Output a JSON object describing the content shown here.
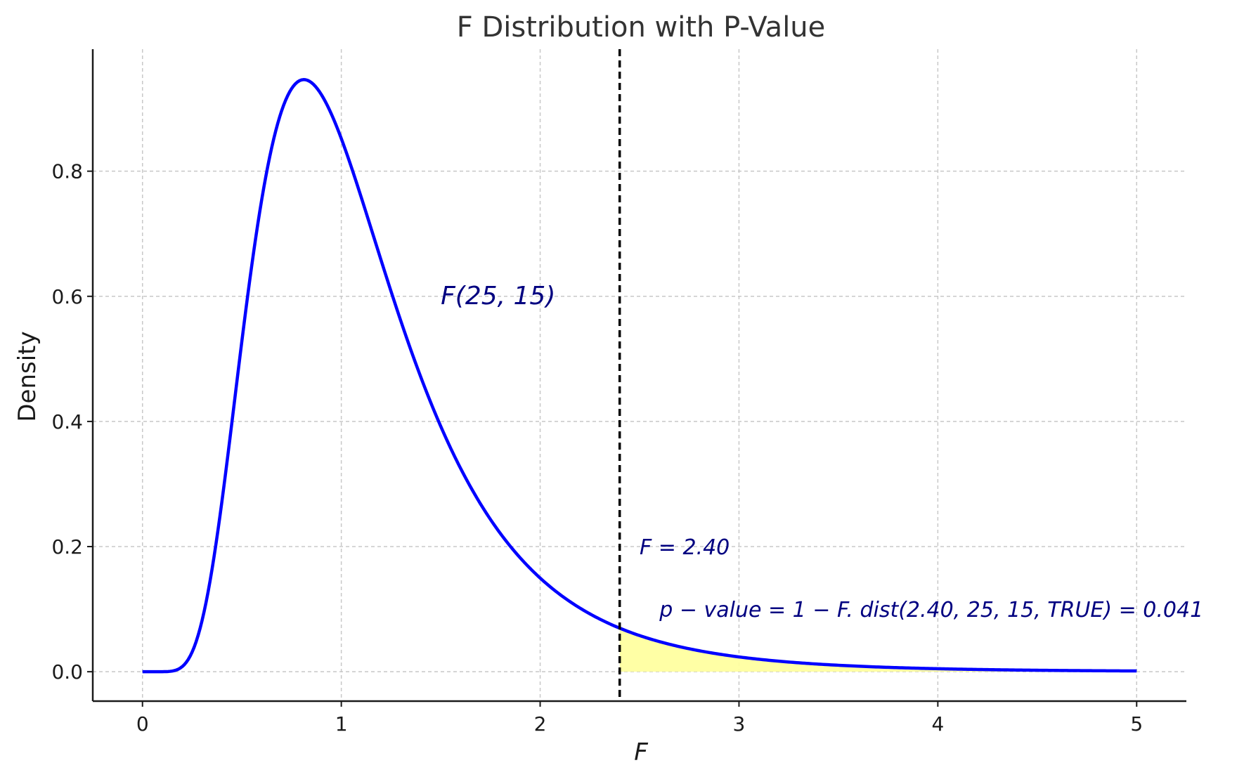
{
  "chart_data": {
    "type": "line",
    "title": "F Distribution with P-Value",
    "xlabel": "F",
    "ylabel": "Density",
    "xlim": [
      -0.25,
      5.25
    ],
    "ylim": [
      -0.047,
      0.995
    ],
    "x_ticks": [
      "0",
      "1",
      "2",
      "3",
      "4",
      "5"
    ],
    "y_ticks": [
      "0.0",
      "0.2",
      "0.4",
      "0.6",
      "0.8"
    ],
    "grid": true,
    "series": [
      {
        "distribution": "F",
        "df1": 25,
        "df2": 15,
        "x_range": [
          0,
          5
        ],
        "color": "#0000ff",
        "points": [
          {
            "x": 0.0,
            "y": 0.0
          },
          {
            "x": 0.1,
            "y": 0.0003
          },
          {
            "x": 0.2,
            "y": 0.03
          },
          {
            "x": 0.3,
            "y": 0.19
          },
          {
            "x": 0.4,
            "y": 0.45
          },
          {
            "x": 0.5,
            "y": 0.7
          },
          {
            "x": 0.6,
            "y": 0.87
          },
          {
            "x": 0.7,
            "y": 0.94
          },
          {
            "x": 0.8,
            "y": 0.947
          },
          {
            "x": 0.9,
            "y": 0.92
          },
          {
            "x": 1.0,
            "y": 0.86
          },
          {
            "x": 1.2,
            "y": 0.7
          },
          {
            "x": 1.4,
            "y": 0.52
          },
          {
            "x": 1.6,
            "y": 0.37
          },
          {
            "x": 1.8,
            "y": 0.25
          },
          {
            "x": 2.0,
            "y": 0.155
          },
          {
            "x": 2.2,
            "y": 0.105
          },
          {
            "x": 2.4,
            "y": 0.068
          },
          {
            "x": 2.6,
            "y": 0.047
          },
          {
            "x": 2.8,
            "y": 0.033
          },
          {
            "x": 3.0,
            "y": 0.024
          },
          {
            "x": 3.5,
            "y": 0.011
          },
          {
            "x": 4.0,
            "y": 0.0055
          },
          {
            "x": 4.5,
            "y": 0.003
          },
          {
            "x": 5.0,
            "y": 0.0017
          }
        ]
      }
    ],
    "critical_value": 2.4,
    "shaded_region": {
      "from": 2.4,
      "to": 5.0,
      "color": "#ffffa0"
    },
    "annotations": [
      {
        "text": "F(25, 15)",
        "x": 1.5,
        "y": 0.6
      },
      {
        "text": "F = 2.40",
        "x": 2.5,
        "y": 0.2
      },
      {
        "text": "p − value = 1 − F. dist(2.40, 25, 15, TRUE) = 0.041",
        "x": 2.6,
        "y": 0.1
      }
    ],
    "p_value": 0.041
  }
}
